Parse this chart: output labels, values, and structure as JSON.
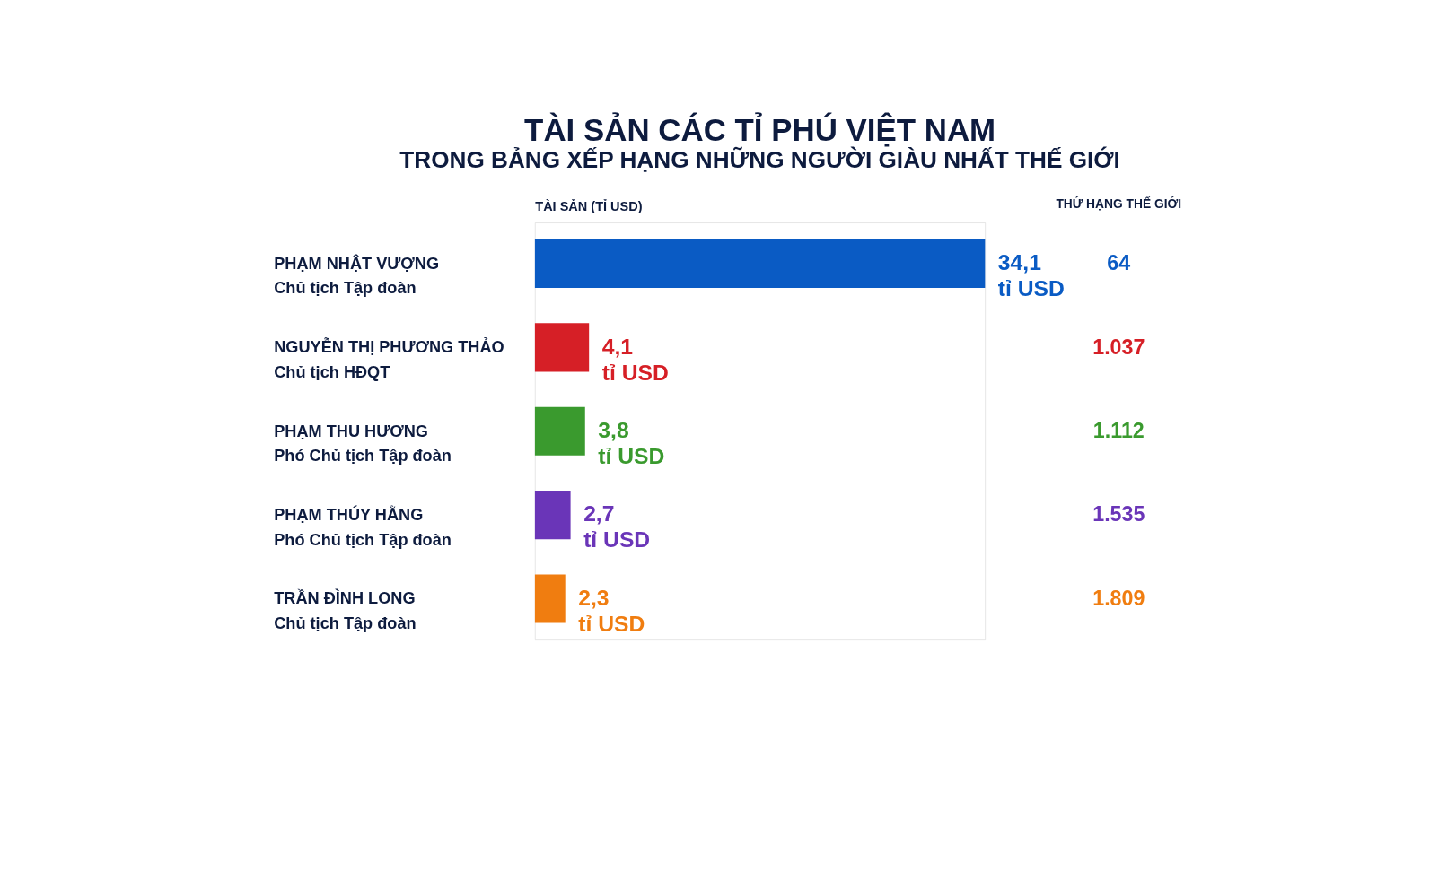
{
  "chart_data": {
    "type": "bar",
    "orientation": "horizontal",
    "title": "TÀI SẢN CÁC TỈ PHÚ VIỆT NAM",
    "subtitle": "TRONG BẢNG XẾP HẠNG NHỮNG NGƯỜI GIÀU NHẤT THẾ GIỚI",
    "xlabel": "TÀI SẢN (TỈ USD)",
    "tick_labels": false,
    "grid": false,
    "categories": [
      "PHẠM NHẬT VƯỢNG\nChủ tịch Tập đoàn",
      "NGUYỄN THỊ PHƯƠNG THẢO\nChủ tịch HĐQT",
      "PHẠM THU HƯƠNG\nPhó Chủ tịch Tập đoàn",
      "PHẠM THÚY HẰNG\nPhó Chủ tịch Tập đoàn",
      "TRẦN ĐÌNH LONG\nChủ tịch Tập đoàn"
    ],
    "values": [
      34.1,
      4.1,
      3.8,
      2.7,
      2.3
    ],
    "colors": [
      "#0a5bc4",
      "#d61f26",
      "#3a9a2e",
      "#6a35b8",
      "#f07d10"
    ],
    "value_labels": [
      "34,1\ntỉ USD",
      "4,1\ntỉ USD",
      "3,8\ntỉ USD",
      "2,7\ntỉ USD",
      "2,3\ntỉ USD"
    ],
    "annotations": [
      "THỨ HẠNG THẾ GIỚI",
      "64",
      "1.037",
      "1.112",
      "1.535",
      "1.809"
    ]
  }
}
